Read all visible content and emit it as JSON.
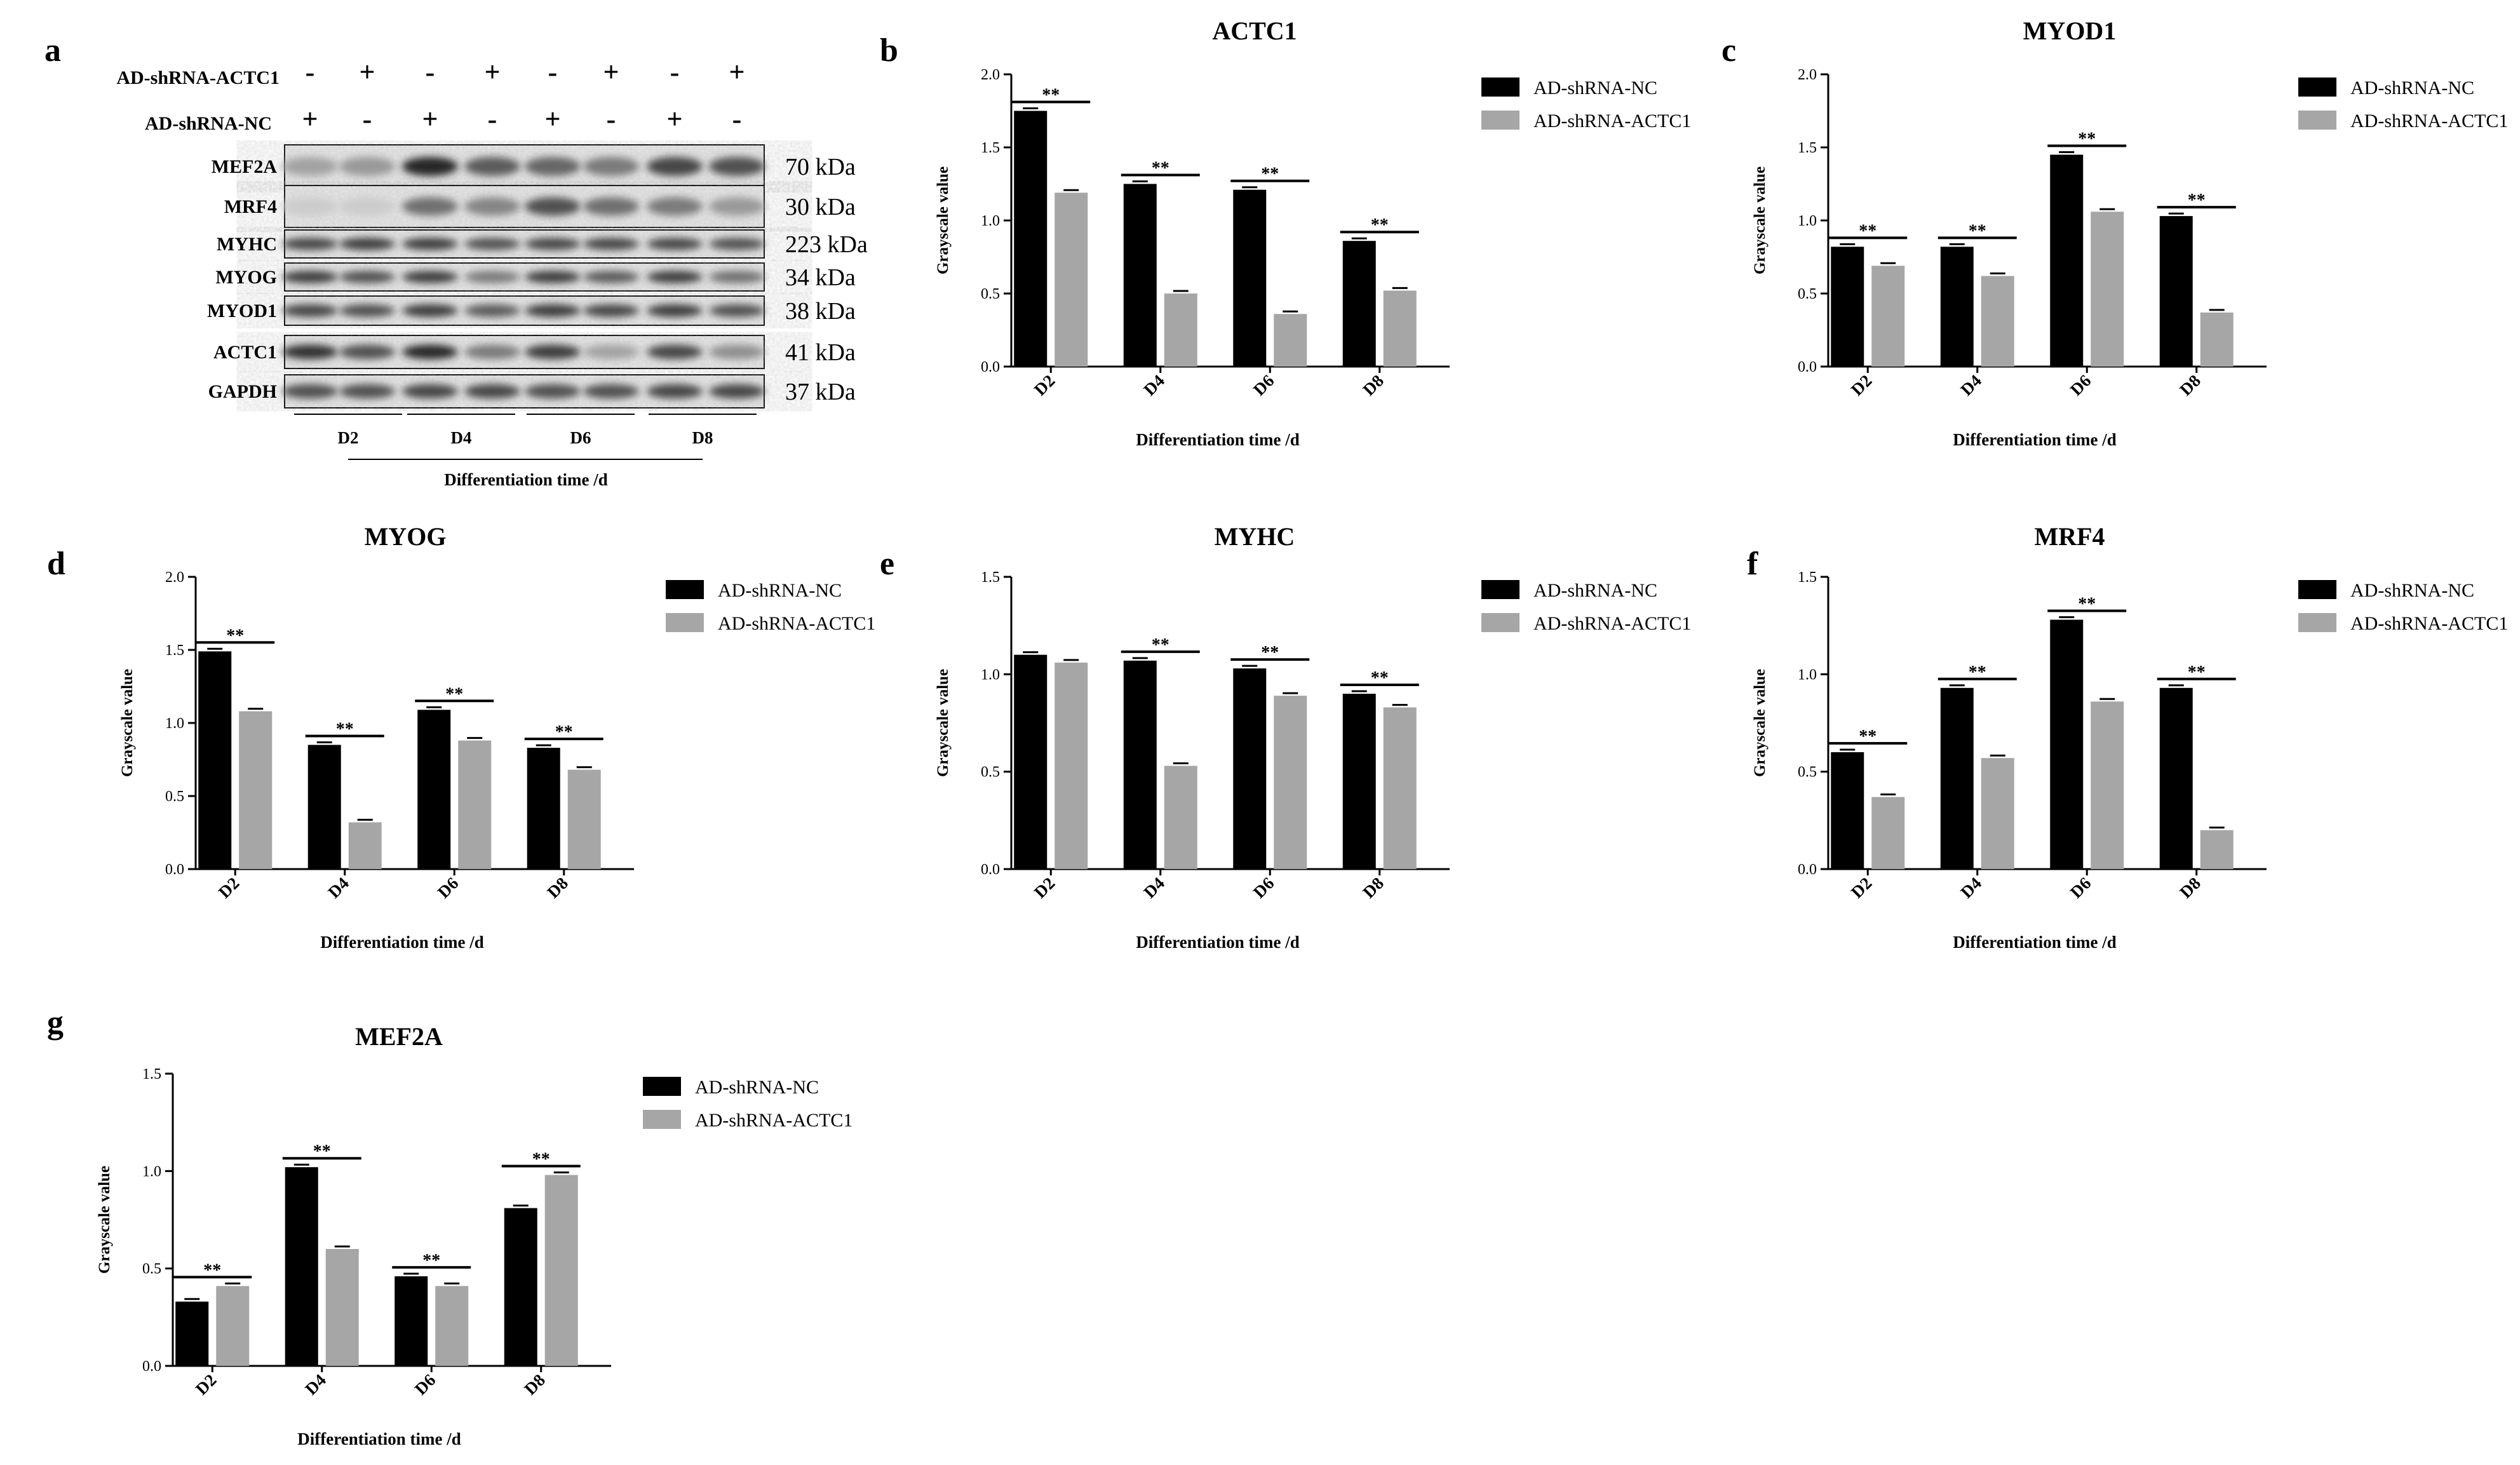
{
  "colors": {
    "nc": "#000000",
    "actc1": "#a6a6a6",
    "axis": "#000000"
  },
  "blot": {
    "letter": "a",
    "treatments": [
      {
        "name": "AD-shRNA-ACTC1",
        "signs": [
          "-",
          "+",
          "-",
          "+",
          "-",
          "+",
          "-",
          "+"
        ]
      },
      {
        "name": "AD-shRNA-NC",
        "signs": [
          "+",
          "-",
          "+",
          "-",
          "+",
          "-",
          "+",
          "-"
        ]
      }
    ],
    "bands": [
      {
        "name": "MEF2A",
        "kda": "70 kDa"
      },
      {
        "name": "MRF4",
        "kda": "30 kDa"
      },
      {
        "name": "MYHC",
        "kda": "223 kDa"
      },
      {
        "name": "MYOG",
        "kda": "34 kDa"
      },
      {
        "name": "MYOD1",
        "kda": "38 kDa"
      },
      {
        "name": "ACTC1",
        "kda": "41 kDa"
      },
      {
        "name": "GAPDH",
        "kda": "37 kDa"
      }
    ],
    "days": [
      "D2",
      "D4",
      "D6",
      "D8"
    ],
    "xlabel": "Differentiation time /d"
  },
  "chart_data": [
    {
      "letter": "b",
      "type": "bar",
      "title": "ACTC1",
      "categories": [
        "D2",
        "D4",
        "D6",
        "D8"
      ],
      "series": [
        {
          "name": "AD-shRNA-NC",
          "values": [
            1.75,
            1.25,
            1.21,
            0.86
          ]
        },
        {
          "name": "AD-shRNA-ACTC1",
          "values": [
            1.19,
            0.5,
            0.36,
            0.52
          ]
        }
      ],
      "significance": [
        "**",
        "**",
        "**",
        "**"
      ],
      "xlabel": "Differentiation time /d",
      "ylabel": "Grayscale value",
      "ylim": [
        0,
        2.0
      ],
      "yticks": [
        "0.0",
        "0.5",
        "1.0",
        "1.5",
        "2.0"
      ],
      "legend": "top-right"
    },
    {
      "letter": "c",
      "type": "bar",
      "title": "MYOD1",
      "categories": [
        "D2",
        "D4",
        "D6",
        "D8"
      ],
      "series": [
        {
          "name": "AD-shRNA-NC",
          "values": [
            0.82,
            0.82,
            1.45,
            1.03
          ]
        },
        {
          "name": "AD-shRNA-ACTC1",
          "values": [
            0.69,
            0.62,
            1.06,
            0.37
          ]
        }
      ],
      "significance": [
        "**",
        "**",
        "**",
        "**"
      ],
      "xlabel": "Differentiation time /d",
      "ylabel": "Grayscale value",
      "ylim": [
        0,
        2.0
      ],
      "yticks": [
        "0.0",
        "0.5",
        "1.0",
        "1.5",
        "2.0"
      ],
      "legend": "top-right"
    },
    {
      "letter": "d",
      "type": "bar",
      "title": "MYOG",
      "categories": [
        "D2",
        "D4",
        "D6",
        "D8"
      ],
      "series": [
        {
          "name": "AD-shRNA-NC",
          "values": [
            1.49,
            0.85,
            1.09,
            0.83
          ]
        },
        {
          "name": "AD-shRNA-ACTC1",
          "values": [
            1.08,
            0.32,
            0.88,
            0.68
          ]
        }
      ],
      "significance": [
        "**",
        "**",
        "**",
        "**"
      ],
      "xlabel": "Differentiation time /d",
      "ylabel": "Grayscale value",
      "ylim": [
        0,
        2.0
      ],
      "yticks": [
        "0.0",
        "0.5",
        "1.0",
        "1.5",
        "2.0"
      ],
      "legend": "top-right"
    },
    {
      "letter": "e",
      "type": "bar",
      "title": "MYHC",
      "categories": [
        "D2",
        "D4",
        "D6",
        "D8"
      ],
      "series": [
        {
          "name": "AD-shRNA-NC",
          "values": [
            1.1,
            1.07,
            1.03,
            0.9
          ]
        },
        {
          "name": "AD-shRNA-ACTC1",
          "values": [
            1.06,
            0.53,
            0.89,
            0.83
          ]
        }
      ],
      "significance": [
        "",
        "**",
        "**",
        "**"
      ],
      "xlabel": "Differentiation time /d",
      "ylabel": "Grayscale value",
      "ylim": [
        0,
        1.5
      ],
      "yticks": [
        "0.0",
        "0.5",
        "1.0",
        "1.5"
      ],
      "legend": "top-right"
    },
    {
      "letter": "f",
      "type": "bar",
      "title": "MRF4",
      "categories": [
        "D2",
        "D4",
        "D6",
        "D8"
      ],
      "series": [
        {
          "name": "AD-shRNA-NC",
          "values": [
            0.6,
            0.93,
            1.28,
            0.93
          ]
        },
        {
          "name": "AD-shRNA-ACTC1",
          "values": [
            0.37,
            0.57,
            0.86,
            0.2
          ]
        }
      ],
      "significance": [
        "**",
        "**",
        "**",
        "**"
      ],
      "xlabel": "Differentiation time /d",
      "ylabel": "Grayscale value",
      "ylim": [
        0,
        1.5
      ],
      "yticks": [
        "0.0",
        "0.5",
        "1.0",
        "1.5"
      ],
      "legend": "top-right"
    },
    {
      "letter": "g",
      "type": "bar",
      "title": "MEF2A",
      "categories": [
        "D2",
        "D4",
        "D6",
        "D8"
      ],
      "series": [
        {
          "name": "AD-shRNA-NC",
          "values": [
            0.33,
            1.02,
            0.46,
            0.81
          ]
        },
        {
          "name": "AD-shRNA-ACTC1",
          "values": [
            0.41,
            0.6,
            0.41,
            0.98
          ]
        }
      ],
      "significance": [
        "**",
        "**",
        "**",
        "**"
      ],
      "xlabel": "Differentiation time /d",
      "ylabel": "Grayscale value",
      "ylim": [
        0,
        1.5
      ],
      "yticks": [
        "0.0",
        "0.5",
        "1.0",
        "1.5"
      ],
      "legend": "top-right"
    }
  ]
}
